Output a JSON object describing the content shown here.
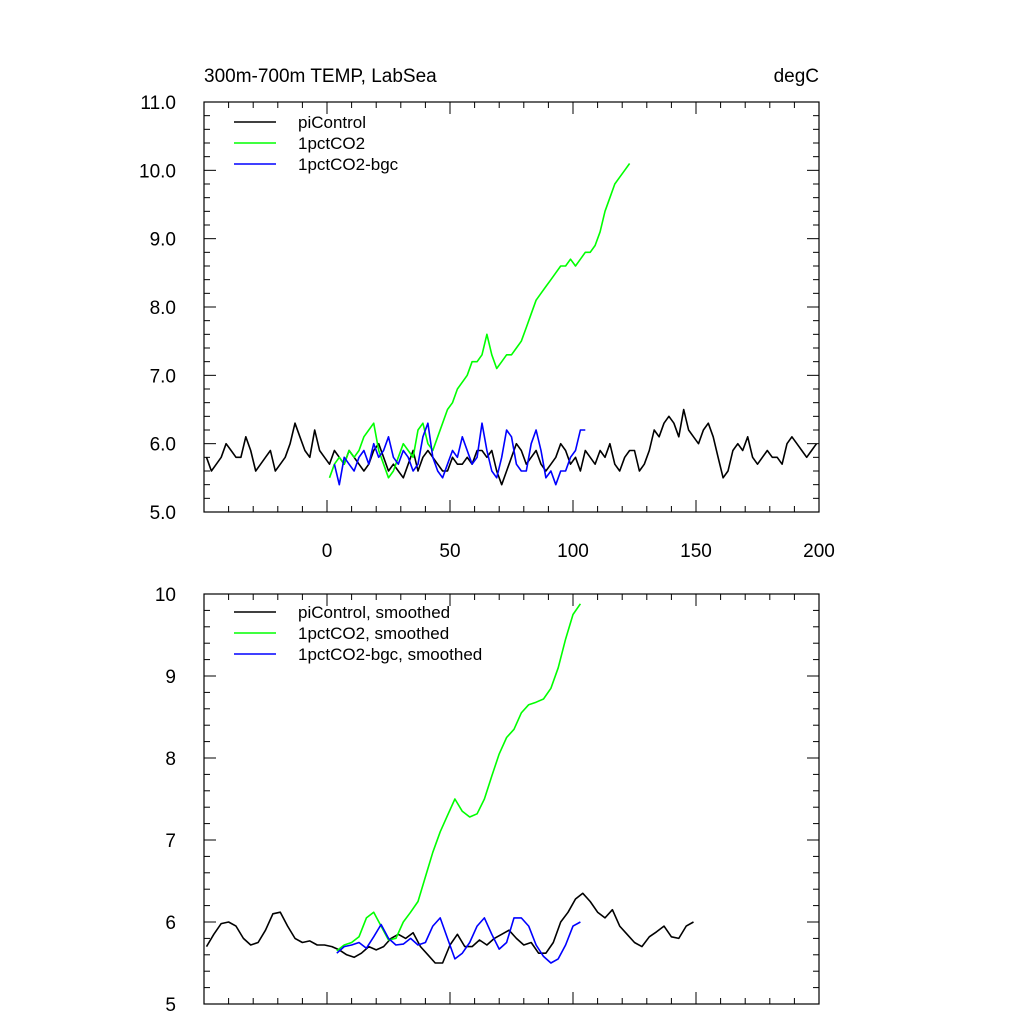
{
  "chart_data": [
    {
      "type": "line",
      "title": "300m-700m TEMP, LabSea",
      "units": "degC",
      "xlim": [
        -50,
        200
      ],
      "ylim": [
        5.0,
        11.0
      ],
      "x_ticks": [
        0,
        50,
        100,
        150,
        200
      ],
      "y_ticks": [
        "5.0",
        "6.0",
        "7.0",
        "8.0",
        "9.0",
        "10.0",
        "11.0"
      ],
      "legend_position": "top-left",
      "series": [
        {
          "name": "piControl",
          "color": "#000000",
          "x_start": -49,
          "x_step": 2,
          "values": [
            5.8,
            5.6,
            5.7,
            5.8,
            6.0,
            5.9,
            5.8,
            5.8,
            6.1,
            5.9,
            5.6,
            5.7,
            5.8,
            5.9,
            5.6,
            5.7,
            5.8,
            6.0,
            6.3,
            6.1,
            5.9,
            5.8,
            6.2,
            5.9,
            5.8,
            5.7,
            5.9,
            5.8,
            5.7,
            5.9,
            5.8,
            5.7,
            5.6,
            5.7,
            5.9,
            6.0,
            5.8,
            5.6,
            5.7,
            5.6,
            5.5,
            5.7,
            5.9,
            5.6,
            5.8,
            5.9,
            5.8,
            5.7,
            5.6,
            5.6,
            5.8,
            5.7,
            5.7,
            5.8,
            5.7,
            5.9,
            5.9,
            5.8,
            5.9,
            5.6,
            5.4,
            5.6,
            5.8,
            6.0,
            5.9,
            5.7,
            5.8,
            5.9,
            5.7,
            5.6,
            5.7,
            5.8,
            6.0,
            5.9,
            5.7,
            5.8,
            5.6,
            5.9,
            5.8,
            5.7,
            5.9,
            5.8,
            6.0,
            5.7,
            5.6,
            5.8,
            5.9,
            5.9,
            5.6,
            5.7,
            5.9,
            6.2,
            6.1,
            6.3,
            6.4,
            6.3,
            6.1,
            6.5,
            6.2,
            6.1,
            6.0,
            6.2,
            6.3,
            6.1,
            5.8,
            5.5,
            5.6,
            5.9,
            6.0,
            5.9,
            6.1,
            5.8,
            5.7,
            5.8,
            5.9,
            5.8,
            5.8,
            5.7,
            6.0,
            6.1,
            6.0,
            5.9,
            5.8,
            5.9,
            6.0
          ]
        },
        {
          "name": "1pctCO2",
          "color": "#00ff00",
          "x_start": 1,
          "x_step": 2,
          "values": [
            5.5,
            5.7,
            5.8,
            5.7,
            5.9,
            5.8,
            5.9,
            6.1,
            6.2,
            6.3,
            5.9,
            5.7,
            5.5,
            5.6,
            5.8,
            6.0,
            5.9,
            5.8,
            6.2,
            6.3,
            6.0,
            5.9,
            6.1,
            6.3,
            6.5,
            6.6,
            6.8,
            6.9,
            7.0,
            7.2,
            7.2,
            7.3,
            7.6,
            7.3,
            7.1,
            7.2,
            7.3,
            7.3,
            7.4,
            7.5,
            7.7,
            7.9,
            8.1,
            8.2,
            8.3,
            8.4,
            8.5,
            8.6,
            8.6,
            8.7,
            8.6,
            8.7,
            8.8,
            8.8,
            8.9,
            9.1,
            9.4,
            9.6,
            9.8,
            9.9,
            10.0,
            10.1
          ]
        },
        {
          "name": "1pctCO2-bgc",
          "color": "#0000ff",
          "x_start": 3,
          "x_step": 2,
          "values": [
            5.7,
            5.4,
            5.8,
            5.7,
            5.6,
            5.8,
            5.9,
            5.7,
            6.0,
            5.8,
            5.9,
            6.1,
            5.8,
            5.7,
            5.9,
            5.8,
            5.6,
            5.7,
            6.1,
            6.3,
            5.8,
            5.6,
            5.5,
            5.7,
            5.9,
            5.8,
            6.1,
            5.9,
            5.7,
            5.8,
            6.3,
            5.9,
            5.6,
            5.5,
            5.8,
            6.2,
            6.1,
            5.7,
            5.6,
            5.6,
            6.0,
            6.2,
            5.9,
            5.5,
            5.6,
            5.4,
            5.6,
            5.6,
            5.8,
            5.9,
            6.2,
            6.2
          ]
        }
      ]
    },
    {
      "type": "line",
      "xlim": [
        -50,
        200
      ],
      "ylim": [
        5,
        10
      ],
      "x_ticks": [
        0,
        50,
        100,
        150,
        200
      ],
      "y_ticks": [
        "5",
        "6",
        "7",
        "8",
        "9",
        "10"
      ],
      "legend_position": "top-left",
      "series": [
        {
          "name": "piControl, smoothed",
          "color": "#000000",
          "x_start": -49,
          "x_step": 3,
          "values": [
            5.7,
            5.85,
            5.98,
            6.0,
            5.95,
            5.8,
            5.72,
            5.75,
            5.9,
            6.1,
            6.12,
            5.95,
            5.8,
            5.75,
            5.77,
            5.72,
            5.72,
            5.7,
            5.66,
            5.6,
            5.57,
            5.62,
            5.7,
            5.66,
            5.7,
            5.8,
            5.85,
            5.8,
            5.87,
            5.7,
            5.6,
            5.5,
            5.5,
            5.72,
            5.85,
            5.7,
            5.7,
            5.78,
            5.72,
            5.8,
            5.85,
            5.9,
            5.8,
            5.72,
            5.75,
            5.62,
            5.62,
            5.75,
            6.0,
            6.12,
            6.28,
            6.35,
            6.25,
            6.12,
            6.05,
            6.15,
            5.95,
            5.85,
            5.75,
            5.7,
            5.82,
            5.88,
            5.95,
            5.82,
            5.8,
            5.95,
            6.0
          ]
        },
        {
          "name": "1pctCO2, smoothed",
          "color": "#00ff00",
          "x_start": 4,
          "x_step": 3,
          "values": [
            5.65,
            5.72,
            5.75,
            5.82,
            6.05,
            6.12,
            5.95,
            5.78,
            5.8,
            6.0,
            6.12,
            6.25,
            6.55,
            6.85,
            7.1,
            7.3,
            7.5,
            7.35,
            7.28,
            7.32,
            7.5,
            7.78,
            8.05,
            8.25,
            8.35,
            8.55,
            8.65,
            8.68,
            8.72,
            8.85,
            9.1,
            9.45,
            9.75,
            9.88
          ]
        },
        {
          "name": "1pctCO2-bgc, smoothed",
          "color": "#0000ff",
          "x_start": 4,
          "x_step": 3,
          "values": [
            5.62,
            5.7,
            5.72,
            5.75,
            5.68,
            5.82,
            5.97,
            5.8,
            5.72,
            5.73,
            5.8,
            5.72,
            5.75,
            5.95,
            6.05,
            5.8,
            5.55,
            5.62,
            5.75,
            5.95,
            6.05,
            5.85,
            5.67,
            5.75,
            6.05,
            6.05,
            5.95,
            5.72,
            5.58,
            5.5,
            5.55,
            5.72,
            5.95,
            6.0
          ]
        }
      ]
    }
  ]
}
